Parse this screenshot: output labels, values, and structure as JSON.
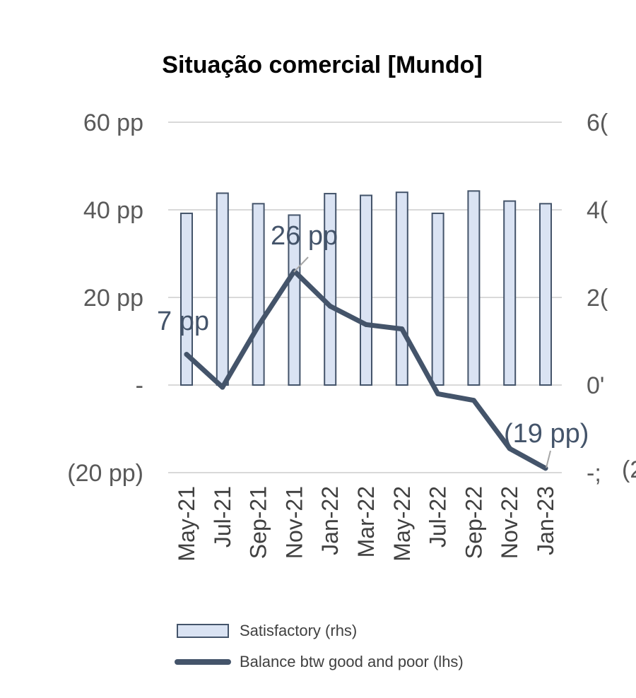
{
  "chart_data": {
    "type": "bar+line",
    "title": "Situação comercial [Mundo]",
    "categories": [
      "May-21",
      "Jul-21",
      "Sep-21",
      "Nov-21",
      "Jan-22",
      "Mar-22",
      "May-22",
      "Jul-22",
      "Sep-22",
      "Nov-22",
      "Jan-23"
    ],
    "series": [
      {
        "name": "Satisfactory (rhs)",
        "type": "bar",
        "axis": "right",
        "values": [
          39.2,
          43.8,
          41.4,
          38.8,
          43.7,
          43.3,
          44.0,
          39.2,
          44.3,
          42.0,
          41.4
        ]
      },
      {
        "name": "Balance btw good and poor (lhs)",
        "type": "line",
        "axis": "left",
        "values": [
          7,
          -0.5,
          13.5,
          26,
          18,
          13.8,
          12.8,
          -2,
          -3.5,
          -14.5,
          -19
        ]
      }
    ],
    "data_labels": [
      {
        "series": 1,
        "index": 0,
        "text": "7 pp"
      },
      {
        "series": 1,
        "index": 3,
        "text": "26 pp"
      },
      {
        "series": 1,
        "index": 10,
        "text": "(19 pp)"
      }
    ],
    "left_axis": {
      "ylim": [
        -20,
        60
      ],
      "ticks": [
        60,
        40,
        20,
        0,
        -20
      ],
      "tick_labels": [
        "60 pp",
        "40 pp",
        "20 pp",
        "-",
        "(20 pp)"
      ]
    },
    "right_axis": {
      "ylim": [
        -20,
        60
      ],
      "ticks": [
        60,
        40,
        20,
        0,
        -20
      ],
      "tick_labels": [
        "6(",
        "4(",
        "2(",
        "0'",
        "-;"
      ],
      "extra_text": "(2"
    },
    "grid": true,
    "legend": {
      "placement": "bottom",
      "entries": [
        "Satisfactory (rhs)",
        "Balance btw good and poor (lhs)"
      ]
    },
    "colors": {
      "bar_fill": "#dae3f3",
      "bar_stroke": "#44546A",
      "line": "#44546A",
      "label": "#44546A",
      "grid": "#d9d9d9"
    }
  }
}
